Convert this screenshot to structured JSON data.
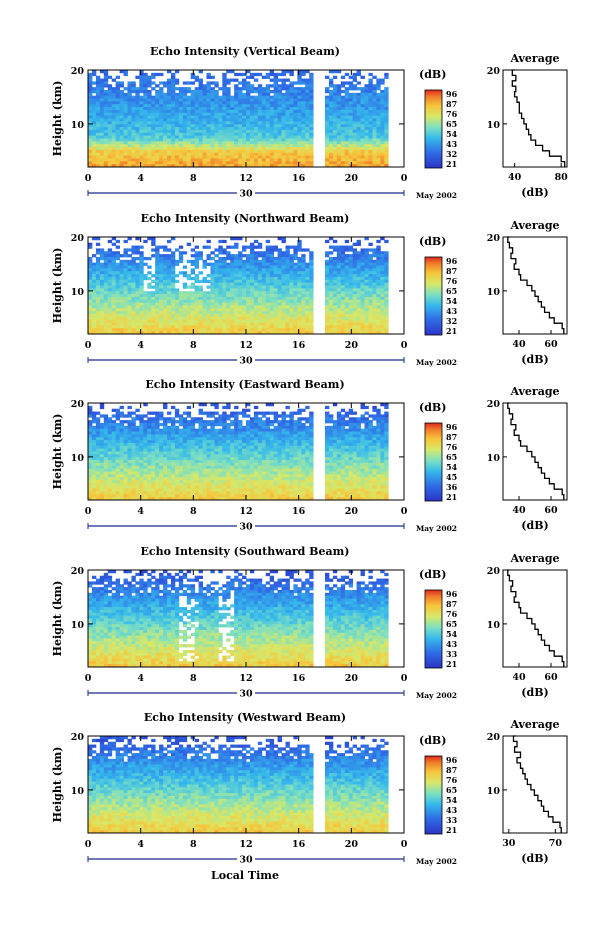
{
  "footer": {
    "xlabel": "Local Time"
  },
  "chart_data": [
    {
      "type": "heatmap",
      "title": "Echo Intensity (Vertical Beam)",
      "ylabel": "Height (km)",
      "y_ticks": [
        "20",
        "10"
      ],
      "ylim": [
        2,
        20
      ],
      "x_ticks": [
        "0",
        "4",
        "8",
        "12",
        "16",
        "20",
        "0"
      ],
      "xlim": [
        0,
        24
      ],
      "date_day": "30",
      "date_month": "May 2002",
      "colorbar": {
        "unit": "(dB)",
        "levels": [
          "96",
          "87",
          "76",
          "65",
          "54",
          "43",
          "32",
          "21"
        ],
        "min": 21,
        "max": 96
      },
      "gap_hours": [
        17.0,
        17.9
      ],
      "data_end_hour": 22.8,
      "avg_profile": {
        "title": "Average",
        "xlabel": "(dB)",
        "xticks": [
          "40",
          "80"
        ],
        "xlim": [
          30,
          85
        ],
        "yticks": [
          "20",
          "10"
        ],
        "values": [
          [
            2,
            83
          ],
          [
            3,
            80
          ],
          [
            4,
            70
          ],
          [
            5,
            64
          ],
          [
            6,
            58
          ],
          [
            7,
            54
          ],
          [
            8,
            52
          ],
          [
            9,
            50
          ],
          [
            10,
            48
          ],
          [
            11,
            46
          ],
          [
            12,
            44
          ],
          [
            13,
            44
          ],
          [
            14,
            42
          ],
          [
            15,
            40
          ],
          [
            16,
            41
          ],
          [
            17,
            38
          ],
          [
            18,
            41
          ],
          [
            19,
            38
          ],
          [
            20,
            40
          ]
        ]
      }
    },
    {
      "type": "heatmap",
      "title": "Echo Intensity (Northward Beam)",
      "ylabel": "Height (km)",
      "y_ticks": [
        "20",
        "10"
      ],
      "ylim": [
        2,
        20
      ],
      "x_ticks": [
        "0",
        "4",
        "8",
        "12",
        "16",
        "20",
        "0"
      ],
      "xlim": [
        0,
        24
      ],
      "date_day": "30",
      "date_month": "May 2002",
      "colorbar": {
        "unit": "(dB)",
        "levels": [
          "96",
          "87",
          "76",
          "65",
          "54",
          "43",
          "32",
          "21"
        ],
        "min": 21,
        "max": 96
      },
      "gap_hours": [
        17.0,
        17.9
      ],
      "data_end_hour": 22.8,
      "avg_profile": {
        "title": "Average",
        "xlabel": "(dB)",
        "xticks": [
          "40",
          "60"
        ],
        "xlim": [
          30,
          70
        ],
        "yticks": [
          "20",
          "10"
        ],
        "values": [
          [
            2,
            68
          ],
          [
            3,
            67
          ],
          [
            4,
            62
          ],
          [
            5,
            59
          ],
          [
            6,
            56
          ],
          [
            7,
            54
          ],
          [
            8,
            52
          ],
          [
            9,
            50
          ],
          [
            10,
            48
          ],
          [
            11,
            45
          ],
          [
            12,
            41
          ],
          [
            13,
            40
          ],
          [
            14,
            37
          ],
          [
            15,
            38
          ],
          [
            16,
            35
          ],
          [
            17,
            36
          ],
          [
            18,
            34
          ],
          [
            19,
            33
          ],
          [
            20,
            34
          ]
        ]
      }
    },
    {
      "type": "heatmap",
      "title": "Echo Intensity (Eastward Beam)",
      "ylabel": "Height (km)",
      "y_ticks": [
        "20",
        "10"
      ],
      "ylim": [
        2,
        20
      ],
      "x_ticks": [
        "0",
        "4",
        "8",
        "12",
        "16",
        "20",
        "0"
      ],
      "xlim": [
        0,
        24
      ],
      "date_day": "30",
      "date_month": "May 2002",
      "colorbar": {
        "unit": "(dB)",
        "levels": [
          "96",
          "87",
          "76",
          "65",
          "54",
          "45",
          "36",
          "21"
        ],
        "min": 21,
        "max": 96
      },
      "gap_hours": [
        17.0,
        17.9
      ],
      "data_end_hour": 22.8,
      "avg_profile": {
        "title": "Average",
        "xlabel": "(dB)",
        "xticks": [
          "40",
          "60"
        ],
        "xlim": [
          30,
          70
        ],
        "yticks": [
          "20",
          "10"
        ],
        "values": [
          [
            2,
            68
          ],
          [
            3,
            67
          ],
          [
            4,
            62
          ],
          [
            5,
            59
          ],
          [
            6,
            56
          ],
          [
            7,
            54
          ],
          [
            8,
            52
          ],
          [
            9,
            50
          ],
          [
            10,
            48
          ],
          [
            11,
            45
          ],
          [
            12,
            41
          ],
          [
            13,
            40
          ],
          [
            14,
            37
          ],
          [
            15,
            38
          ],
          [
            16,
            35
          ],
          [
            17,
            36
          ],
          [
            18,
            34
          ],
          [
            19,
            33
          ],
          [
            20,
            34
          ]
        ]
      }
    },
    {
      "type": "heatmap",
      "title": "Echo Intensity (Southward Beam)",
      "ylabel": "Height (km)",
      "y_ticks": [
        "20",
        "10"
      ],
      "ylim": [
        2,
        20
      ],
      "x_ticks": [
        "0",
        "4",
        "8",
        "12",
        "16",
        "20",
        "0"
      ],
      "xlim": [
        0,
        24
      ],
      "date_day": "30",
      "date_month": "May 2002",
      "colorbar": {
        "unit": "(dB)",
        "levels": [
          "96",
          "87",
          "76",
          "65",
          "54",
          "43",
          "33",
          "21"
        ],
        "min": 21,
        "max": 96
      },
      "gap_hours": [
        17.0,
        17.9
      ],
      "data_end_hour": 22.8,
      "avg_profile": {
        "title": "Average",
        "xlabel": "(dB)",
        "xticks": [
          "40",
          "60"
        ],
        "xlim": [
          30,
          70
        ],
        "yticks": [
          "20",
          "10"
        ],
        "values": [
          [
            2,
            68
          ],
          [
            3,
            67
          ],
          [
            4,
            62
          ],
          [
            5,
            59
          ],
          [
            6,
            56
          ],
          [
            7,
            54
          ],
          [
            8,
            52
          ],
          [
            9,
            50
          ],
          [
            10,
            48
          ],
          [
            11,
            45
          ],
          [
            12,
            41
          ],
          [
            13,
            40
          ],
          [
            14,
            37
          ],
          [
            15,
            38
          ],
          [
            16,
            35
          ],
          [
            17,
            36
          ],
          [
            18,
            34
          ],
          [
            19,
            33
          ],
          [
            20,
            34
          ]
        ]
      }
    },
    {
      "type": "heatmap",
      "title": "Echo Intensity (Westward Beam)",
      "ylabel": "Height (km)",
      "y_ticks": [
        "20",
        "10"
      ],
      "ylim": [
        2,
        20
      ],
      "x_ticks": [
        "0",
        "4",
        "8",
        "12",
        "16",
        "20",
        "0"
      ],
      "xlim": [
        0,
        24
      ],
      "date_day": "30",
      "date_month": "May 2002",
      "colorbar": {
        "unit": "(dB)",
        "levels": [
          "96",
          "87",
          "76",
          "65",
          "54",
          "43",
          "33",
          "21"
        ],
        "min": 21,
        "max": 96
      },
      "gap_hours": [
        17.0,
        17.9
      ],
      "data_end_hour": 22.8,
      "avg_profile": {
        "title": "Average",
        "xlabel": "(dB)",
        "xticks": [
          "30",
          "70"
        ],
        "xlim": [
          25,
          80
        ],
        "yticks": [
          "20",
          "10"
        ],
        "values": [
          [
            2,
            75
          ],
          [
            3,
            74
          ],
          [
            4,
            68
          ],
          [
            5,
            64
          ],
          [
            6,
            60
          ],
          [
            7,
            58
          ],
          [
            8,
            55
          ],
          [
            9,
            52
          ],
          [
            10,
            49
          ],
          [
            11,
            46
          ],
          [
            12,
            44
          ],
          [
            13,
            42
          ],
          [
            14,
            40
          ],
          [
            15,
            37
          ],
          [
            16,
            40
          ],
          [
            17,
            35
          ],
          [
            18,
            37
          ],
          [
            19,
            34
          ],
          [
            20,
            36
          ]
        ]
      }
    }
  ]
}
